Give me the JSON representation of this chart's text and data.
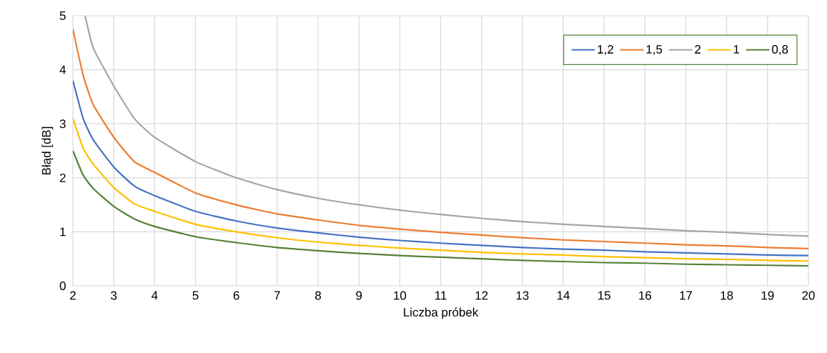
{
  "chart_data": {
    "type": "line",
    "xlabel": "Liczba próbek",
    "ylabel": "Błąd [dB]",
    "xlim": [
      2,
      20
    ],
    "ylim": [
      0,
      5
    ],
    "xticks": [
      2,
      3,
      4,
      5,
      6,
      7,
      8,
      9,
      10,
      11,
      12,
      13,
      14,
      15,
      16,
      17,
      18,
      19,
      20
    ],
    "yticks": [
      0,
      1,
      2,
      3,
      4,
      5
    ],
    "grid": true,
    "legend": "top right",
    "marker": "none",
    "line_style": "solid",
    "x": [
      2,
      2.25,
      2.5,
      3,
      3.5,
      4,
      5,
      6,
      7,
      8,
      9,
      10,
      11,
      12,
      13,
      14,
      15,
      16,
      17,
      18,
      19,
      20
    ],
    "series": [
      {
        "name": "1,2",
        "color": "#4472c4",
        "values": [
          3.8,
          3.1,
          2.7,
          2.2,
          1.85,
          1.67,
          1.38,
          1.2,
          1.07,
          0.98,
          0.9,
          0.84,
          0.79,
          0.75,
          0.71,
          0.68,
          0.66,
          0.63,
          0.61,
          0.59,
          0.57,
          0.56
        ]
      },
      {
        "name": "1,5",
        "color": "#ed7d31",
        "values": [
          4.75,
          3.9,
          3.35,
          2.75,
          2.3,
          2.1,
          1.72,
          1.5,
          1.33,
          1.22,
          1.12,
          1.05,
          0.99,
          0.94,
          0.89,
          0.85,
          0.82,
          0.79,
          0.76,
          0.74,
          0.71,
          0.69
        ]
      },
      {
        "name": "2",
        "color": "#a5a5a5",
        "x": [
          2.3,
          2.5,
          3,
          3.5,
          4,
          5,
          6,
          7,
          8,
          9,
          10,
          11,
          12,
          13,
          14,
          15,
          16,
          17,
          18,
          19,
          20
        ],
        "values": [
          5.0,
          4.4,
          3.7,
          3.1,
          2.75,
          2.3,
          2.0,
          1.78,
          1.62,
          1.5,
          1.4,
          1.32,
          1.25,
          1.19,
          1.14,
          1.1,
          1.06,
          1.02,
          0.99,
          0.95,
          0.92
        ]
      },
      {
        "name": "1",
        "color": "#ffc000",
        "values": [
          3.1,
          2.55,
          2.25,
          1.82,
          1.52,
          1.38,
          1.14,
          1.0,
          0.89,
          0.81,
          0.75,
          0.7,
          0.66,
          0.62,
          0.59,
          0.57,
          0.54,
          0.52,
          0.5,
          0.49,
          0.47,
          0.46
        ]
      },
      {
        "name": "0,8",
        "color": "#548235",
        "values": [
          2.5,
          2.05,
          1.8,
          1.47,
          1.24,
          1.1,
          0.91,
          0.8,
          0.71,
          0.65,
          0.6,
          0.56,
          0.53,
          0.5,
          0.47,
          0.45,
          0.43,
          0.42,
          0.4,
          0.39,
          0.38,
          0.37
        ]
      }
    ]
  }
}
